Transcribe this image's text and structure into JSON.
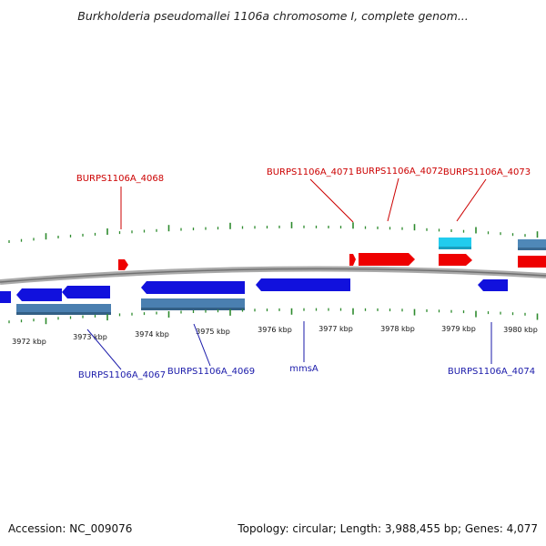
{
  "title": "Burkholderia pseudomallei 1106a chromosome I, complete genom...",
  "footer": {
    "accession": "Accession: NC_009076",
    "stats": "Topology: circular; Length: 3,988,455 bp; Genes: 4,077"
  },
  "colors": {
    "forward_gene": "#ee0000",
    "forward_cds_light": "#22ccee",
    "forward_cds": "#4f88b8",
    "reverse_gene": "#1111dd",
    "reverse_cds": "#4a7fb0",
    "backbone": "#888888",
    "tick": "#2e8b2e",
    "forward_label": "#cc0000",
    "reverse_label": "#1a1aaa"
  },
  "scale_labels": [
    "3972 kbp",
    "3973 kbp",
    "3974 kbp",
    "3975 kbp",
    "3976 kbp",
    "3977 kbp",
    "3978 kbp",
    "3979 kbp",
    "3980 kbp"
  ],
  "forward_labels": [
    "BURPS1106A_4068",
    "BURPS1106A_4071",
    "BURPS1106A_4072",
    "BURPS1106A_4073"
  ],
  "reverse_labels": [
    "BURPS1106A_4067",
    "BURPS1106A_4069",
    "mmsA",
    "BURPS1106A_4074"
  ]
}
